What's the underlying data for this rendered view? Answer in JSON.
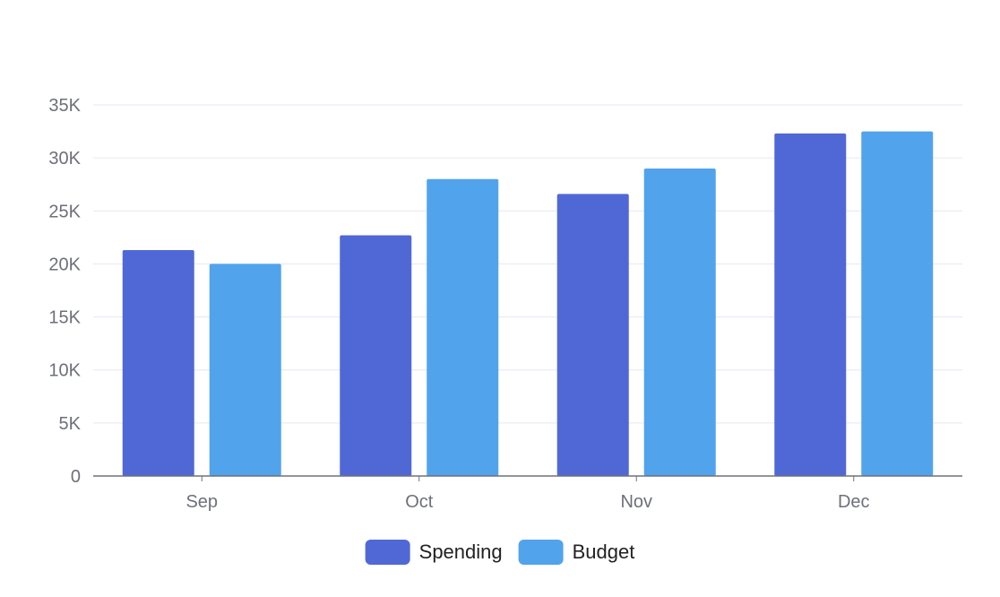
{
  "chart_data": {
    "type": "bar",
    "title": "",
    "xlabel": "",
    "ylabel": "",
    "categories": [
      "Sep",
      "Oct",
      "Nov",
      "Dec"
    ],
    "series": [
      {
        "name": "Spending",
        "color": "#5068d6",
        "values": [
          21300,
          22700,
          26600,
          32300
        ]
      },
      {
        "name": "Budget",
        "color": "#51a3ec",
        "values": [
          20000,
          28000,
          29000,
          32500
        ]
      }
    ],
    "ylim": [
      0,
      35000
    ],
    "yticks": [
      0,
      5000,
      10000,
      15000,
      20000,
      25000,
      30000,
      35000
    ],
    "ytick_labels": [
      "0",
      "5K",
      "10K",
      "15K",
      "20K",
      "25K",
      "30K",
      "35K"
    ],
    "grid": true,
    "legend": "bottom-center",
    "colors": {
      "grid": "#e6e6f0",
      "axis": "#6e7079",
      "tick_text": "#6e7079",
      "legend_text": "#222222"
    }
  }
}
